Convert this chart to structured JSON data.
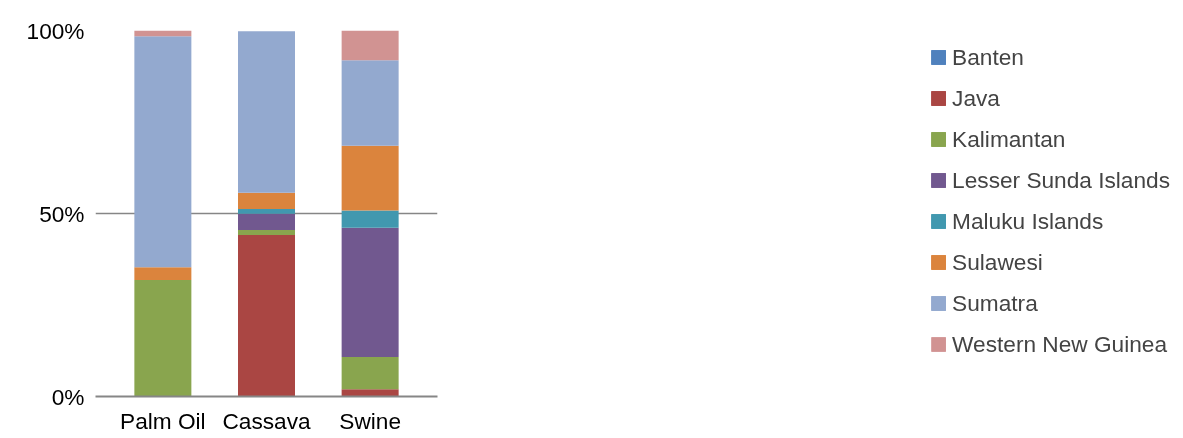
{
  "chart_data": {
    "type": "bar",
    "stacked": true,
    "categories": [
      "Palm Oil",
      "Cassava",
      "Swine"
    ],
    "series": [
      {
        "name": "Banten",
        "color": "#4f81bd",
        "values": [
          0,
          0,
          0
        ]
      },
      {
        "name": "Java",
        "color": "#aa4643",
        "values": [
          0,
          44.1,
          2.0
        ]
      },
      {
        "name": "Kalimantan",
        "color": "#89a54e",
        "values": [
          31.8,
          1.4,
          8.8
        ]
      },
      {
        "name": "Lesser Sunda Islands",
        "color": "#71588f",
        "values": [
          0,
          4.4,
          35.3
        ]
      },
      {
        "name": "Maluku Islands",
        "color": "#4198af",
        "values": [
          0,
          1.3,
          4.7
        ]
      },
      {
        "name": "Sulawesi",
        "color": "#db843d",
        "values": [
          3.5,
          4.5,
          17.7
        ]
      },
      {
        "name": "Sumatra",
        "color": "#93a9cf",
        "values": [
          63.1,
          44.1,
          23.4
        ]
      },
      {
        "name": "Western New Guinea",
        "color": "#d19392",
        "values": [
          1.6,
          null,
          8.1
        ]
      }
    ],
    "ylim": [
      0,
      100
    ],
    "yticks": [
      {
        "value": 0,
        "label": "0%"
      },
      {
        "value": 50,
        "label": "50%"
      },
      {
        "value": 100,
        "label": "100%"
      }
    ],
    "grid": "y",
    "legend": "right"
  }
}
